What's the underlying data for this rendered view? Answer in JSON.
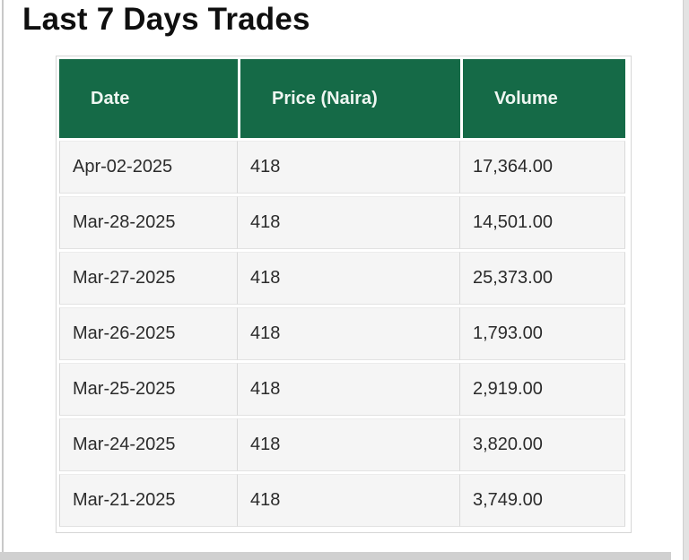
{
  "page": {
    "title": "Last 7 Days Trades"
  },
  "table": {
    "columns": [
      "Date",
      "Price (Naira)",
      "Volume"
    ],
    "rows": [
      [
        "Apr-02-2025",
        "418",
        "17,364.00"
      ],
      [
        "Mar-28-2025",
        "418",
        "14,501.00"
      ],
      [
        "Mar-27-2025",
        "418",
        "25,373.00"
      ],
      [
        "Mar-26-2025",
        "418",
        "1,793.00"
      ],
      [
        "Mar-25-2025",
        "418",
        "2,919.00"
      ],
      [
        "Mar-24-2025",
        "418",
        "3,820.00"
      ],
      [
        "Mar-21-2025",
        "418",
        "3,749.00"
      ]
    ]
  },
  "colors": {
    "header_bg": "#156a47",
    "header_text": "#eef6f1",
    "row_bg": "#f5f5f5",
    "cell_border": "#d9d9d9",
    "title_text": "#0f0f0f"
  },
  "chart_data": {
    "type": "table",
    "title": "Last 7 Days Trades",
    "columns": [
      "Date",
      "Price (Naira)",
      "Volume"
    ],
    "rows": [
      {
        "date": "Apr-02-2025",
        "price": 418,
        "volume": 17364.0
      },
      {
        "date": "Mar-28-2025",
        "price": 418,
        "volume": 14501.0
      },
      {
        "date": "Mar-27-2025",
        "price": 418,
        "volume": 25373.0
      },
      {
        "date": "Mar-26-2025",
        "price": 418,
        "volume": 1793.0
      },
      {
        "date": "Mar-25-2025",
        "price": 418,
        "volume": 2919.0
      },
      {
        "date": "Mar-24-2025",
        "price": 418,
        "volume": 3820.0
      },
      {
        "date": "Mar-21-2025",
        "price": 418,
        "volume": 3749.0
      }
    ]
  }
}
